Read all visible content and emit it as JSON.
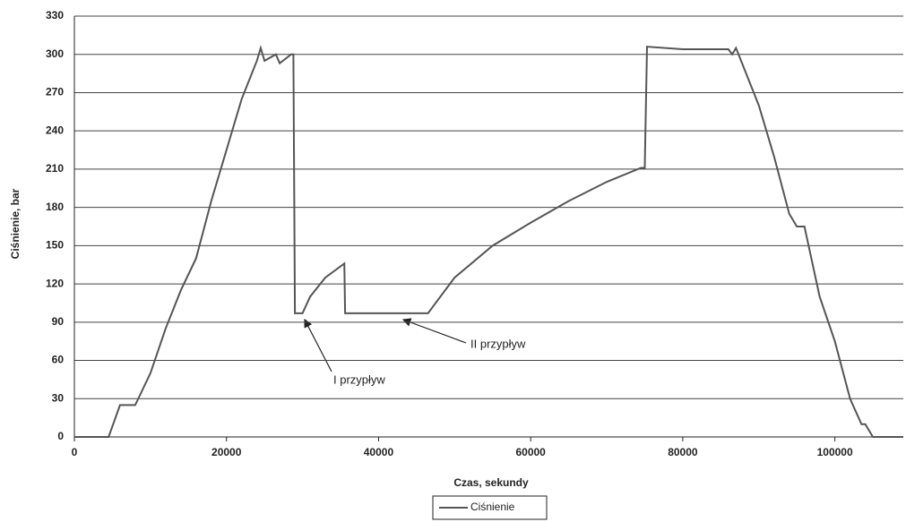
{
  "chart_data": {
    "type": "line",
    "x_label": "Czas, sekundy",
    "y_label": "Ciśnienie, bar",
    "x": [
      0,
      4500,
      6000,
      8000,
      10000,
      12000,
      14000,
      16000,
      18000,
      20000,
      22000,
      24000,
      24500,
      25000,
      26500,
      27000,
      28500,
      28800,
      29000,
      30000,
      31000,
      33000,
      35500,
      35600,
      46500,
      50000,
      55000,
      60000,
      65000,
      70000,
      74500,
      75000,
      75300,
      80000,
      86000,
      86500,
      87000,
      88000,
      90000,
      92000,
      94000,
      95000,
      96000,
      98000,
      100000,
      102000,
      103500,
      104000,
      105000,
      109000
    ],
    "series": [
      {
        "name": "Ciśnienie",
        "color": "#555555",
        "values": [
          0,
          0,
          25,
          25,
          50,
          85,
          115,
          140,
          185,
          225,
          265,
          295,
          305,
          295,
          300,
          293,
          300,
          300,
          97,
          97,
          110,
          125,
          136,
          97,
          97,
          125,
          150,
          168,
          185,
          200,
          211,
          211,
          306,
          304,
          304,
          300,
          305,
          290,
          260,
          220,
          175,
          165,
          165,
          110,
          75,
          30,
          10,
          10,
          0,
          0
        ]
      }
    ],
    "annotations": [
      "I przypływ",
      "II przypływ"
    ],
    "xlim": [
      0,
      109000
    ],
    "ylim": [
      0,
      330
    ],
    "xticks": [
      0,
      20000,
      40000,
      60000,
      80000,
      100000
    ],
    "yticks": [
      0,
      30,
      60,
      90,
      120,
      150,
      180,
      210,
      240,
      270,
      300,
      330
    ],
    "grid": true,
    "legend": "bottom"
  }
}
